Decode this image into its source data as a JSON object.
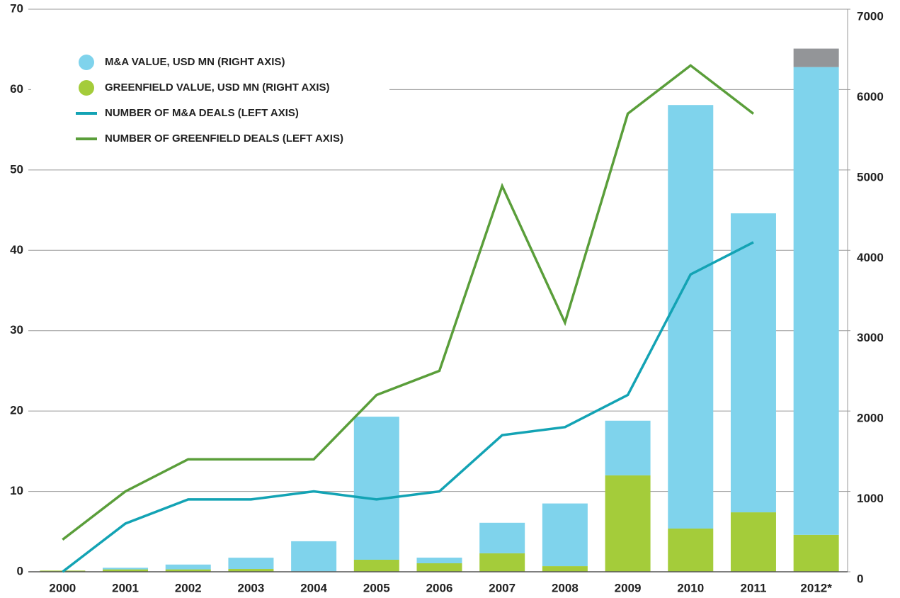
{
  "chart_data": {
    "type": "bar",
    "categories": [
      "2000",
      "2001",
      "2002",
      "2003",
      "2004",
      "2005",
      "2006",
      "2007",
      "2008",
      "2009",
      "2010",
      "2011",
      "2012*"
    ],
    "series": [
      {
        "name": "GREENFIELD VALUE, USD MN (RIGHT AXIS)",
        "color": "#a4cc3a",
        "axis": "y2",
        "type": "bar",
        "values": [
          15,
          30,
          30,
          35,
          5,
          150,
          106,
          230,
          70,
          1200,
          538,
          740,
          460
        ]
      },
      {
        "name": "M&A VALUE, USD MN (RIGHT AXIS)",
        "color": "#7fd3ec",
        "axis": "y2",
        "type": "bar",
        "values": [
          0,
          20,
          60,
          140,
          375,
          1780,
          70,
          380,
          780,
          680,
          5270,
          3720,
          5820
        ]
      },
      {
        "color": "#939598",
        "axis": "y2",
        "type": "bar",
        "values": [
          null,
          null,
          null,
          null,
          null,
          null,
          null,
          null,
          null,
          null,
          null,
          null,
          230
        ]
      },
      {
        "name": "NUMBER OF M&A DEALS (LEFT AXIS)",
        "color": "#13a3b4",
        "type": "line",
        "values": [
          0,
          6,
          9,
          9,
          10,
          9,
          10,
          17,
          18,
          22,
          37,
          41,
          null
        ]
      },
      {
        "name": "NUMBER OF GREENFIELD DEALS (LEFT AXIS)",
        "color": "#5a9e3a",
        "type": "line",
        "values": [
          4,
          10,
          14,
          14,
          14,
          22,
          25,
          48,
          31,
          57,
          63,
          57,
          null
        ]
      }
    ],
    "ylim": [
      0,
      70
    ],
    "yticks": [
      0,
      10,
      20,
      30,
      40,
      50,
      60,
      70
    ],
    "y2lim": [
      0,
      7000
    ],
    "y2ticks": [
      0,
      1000,
      2000,
      3000,
      4000,
      5000,
      6000,
      7000
    ],
    "grid": true,
    "legend": "upper left"
  }
}
